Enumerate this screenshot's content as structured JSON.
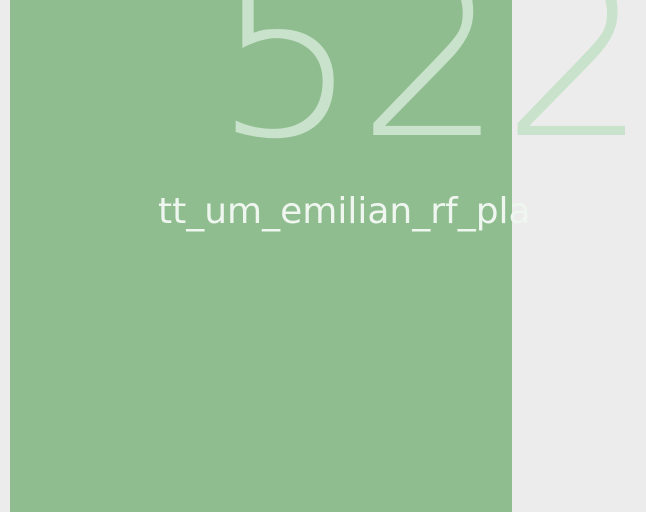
{
  "card": {
    "value": "522",
    "label": "tt_um_emilian_rf_pla",
    "background": "#8fbd8f",
    "number_color": "#c9e2cb",
    "label_color": "#eef6ef"
  }
}
